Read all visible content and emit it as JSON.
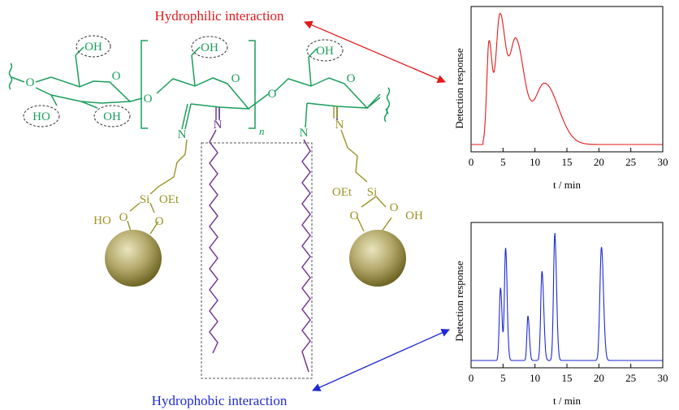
{
  "labels": {
    "hydrophilic": "Hydrophilic interaction",
    "hydrophobic": "Hydrophobic interaction"
  },
  "groups": {
    "oh": "OH",
    "ho": "HO",
    "o": "O",
    "n": "N",
    "n_sub": "n",
    "si": "Si",
    "oet": "OEt"
  },
  "colors": {
    "backbone": "#1a9e5a",
    "alkyl": "#6b2c8f",
    "linker": "#9a9324",
    "hydrophilic": "#e3191a",
    "hydrophobic": "#1f2ad4"
  },
  "chart_data": [
    {
      "type": "line",
      "title": "",
      "xlabel": "t / min",
      "ylabel": "Detection response",
      "xlim": [
        0,
        30
      ],
      "xticks": [
        "0",
        "5",
        "10",
        "15",
        "20",
        "25",
        "30"
      ],
      "series": [
        {
          "color": "#e3191a",
          "peaks_min": [
            2.8,
            4.5,
            7.0,
            11.5
          ],
          "relative_heights": [
            0.78,
            1.0,
            0.81,
            0.48
          ]
        }
      ]
    },
    {
      "type": "line",
      "title": "",
      "xlabel": "t / min",
      "ylabel": "Detection response",
      "xlim": [
        0,
        30
      ],
      "xticks": [
        "0",
        "5",
        "10",
        "15",
        "20",
        "25",
        "30"
      ],
      "series": [
        {
          "color": "#1f2ad4",
          "peaks_min": [
            4.6,
            5.4,
            8.9,
            11.1,
            13.1,
            20.4
          ],
          "relative_heights": [
            0.57,
            0.88,
            0.35,
            0.7,
            1.0,
            0.89
          ]
        }
      ]
    }
  ]
}
